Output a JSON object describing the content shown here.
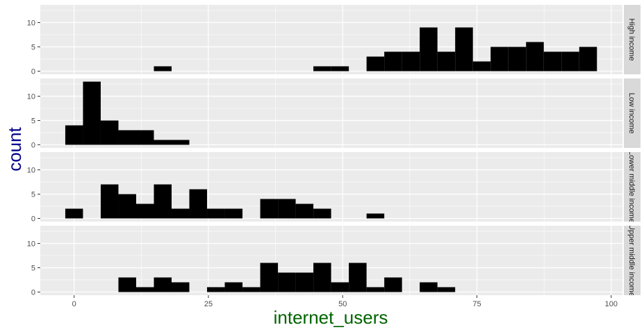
{
  "chart_data": {
    "type": "bar",
    "subtype": "faceted-histogram",
    "xlabel": "internet_users",
    "ylabel": "count",
    "xlabel_color": "#006400",
    "ylabel_color": "#00008B",
    "bar_color": "#000000",
    "panel_bg": "#EBEBEB",
    "strip_bg": "#D9D9D9",
    "grid": true,
    "xlim": [
      -6.3,
      102.1
    ],
    "ylim": [
      -0.65,
      13.65
    ],
    "xticks": [
      0,
      25,
      50,
      75,
      100
    ],
    "yticks": [
      0,
      5,
      10
    ],
    "bin_width": 3.3,
    "bin_starts": [
      -1.65,
      1.65,
      4.95,
      8.25,
      11.55,
      14.85,
      18.15,
      21.45,
      24.75,
      28.05,
      31.35,
      34.65,
      37.95,
      41.25,
      44.55,
      47.85,
      51.15,
      54.45,
      57.75,
      61.05,
      64.35,
      67.65,
      70.95,
      74.25,
      77.55,
      80.85,
      84.15,
      87.45,
      90.75,
      94.05
    ],
    "panels": [
      {
        "label": "High income",
        "counts": [
          0,
          0,
          0,
          0,
          0,
          1,
          0,
          0,
          0,
          0,
          0,
          0,
          0,
          0,
          1,
          1,
          0,
          3,
          4,
          4,
          9,
          4,
          9,
          2,
          5,
          5,
          6,
          4,
          4,
          5
        ]
      },
      {
        "label": "Low income",
        "counts": [
          4,
          13,
          5,
          3,
          3,
          1,
          1,
          0,
          0,
          0,
          0,
          0,
          0,
          0,
          0,
          0,
          0,
          0,
          0,
          0,
          0,
          0,
          0,
          0,
          0,
          0,
          0,
          0,
          0,
          0
        ]
      },
      {
        "label": "Lower middle income",
        "counts": [
          2,
          0,
          7,
          5,
          3,
          7,
          2,
          6,
          2,
          2,
          0,
          4,
          4,
          3,
          2,
          0,
          0,
          1,
          0,
          0,
          0,
          0,
          0,
          0,
          0,
          0,
          0,
          0,
          0,
          0
        ]
      },
      {
        "label": "Upper middle income",
        "counts": [
          0,
          0,
          0,
          3,
          1,
          3,
          2,
          0,
          1,
          2,
          1,
          6,
          4,
          4,
          6,
          2,
          6,
          1,
          3,
          0,
          2,
          1,
          0,
          0,
          0,
          0,
          0,
          0,
          0,
          0
        ]
      }
    ]
  }
}
